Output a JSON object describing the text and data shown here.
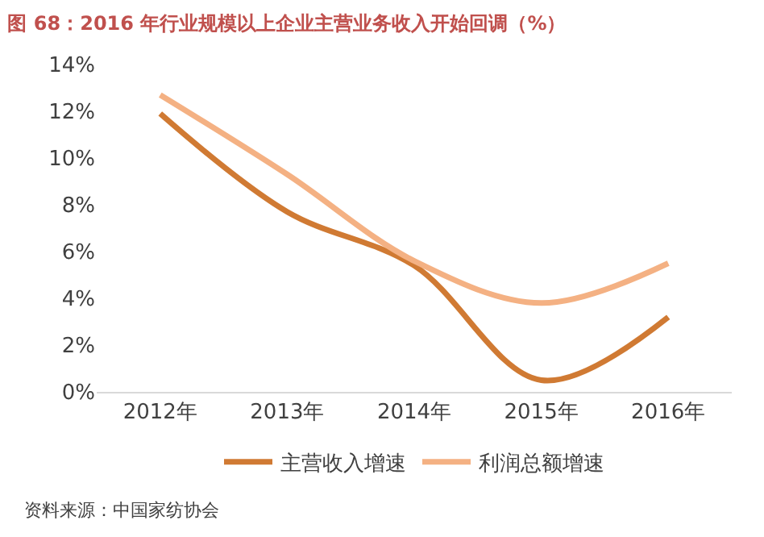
{
  "chart_data": {
    "type": "line",
    "title": "图 68：2016 年行业规模以上企业主营业务收入开始回调（%）",
    "categories": [
      "2012年",
      "2013年",
      "2014年",
      "2015年",
      "2016年"
    ],
    "series": [
      {
        "name": "主营收入增速",
        "color": "#d07a33",
        "values": [
          11.9,
          7.7,
          5.4,
          0.5,
          3.2
        ]
      },
      {
        "name": "利润总额增速",
        "color": "#f4b183",
        "values": [
          12.7,
          9.3,
          5.6,
          3.8,
          5.5
        ]
      }
    ],
    "ylim": [
      0,
      14
    ],
    "yticks": [
      {
        "value": 0,
        "label": "0%"
      },
      {
        "value": 2,
        "label": "2%"
      },
      {
        "value": 4,
        "label": "4%"
      },
      {
        "value": 6,
        "label": "6%"
      },
      {
        "value": 8,
        "label": "8%"
      },
      {
        "value": 10,
        "label": "10%"
      },
      {
        "value": 12,
        "label": "12%"
      },
      {
        "value": 14,
        "label": "14%"
      }
    ],
    "legend": "bottom",
    "marker": "none",
    "line_style": "solid",
    "annotations": [
      "资料来源：中国家纺协会"
    ]
  }
}
